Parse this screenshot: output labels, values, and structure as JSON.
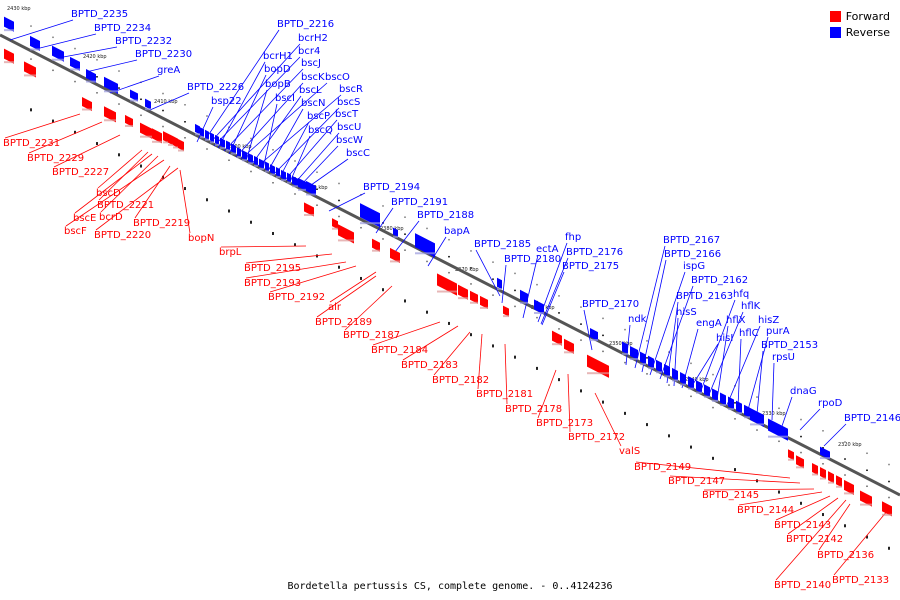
{
  "legend": {
    "forward_label": "Forward",
    "reverse_label": "Reverse",
    "forward_color": "#ff0000",
    "reverse_color": "#0000ff"
  },
  "caption": "Bordetella pertussis CS, complete genome. - 0..4124236",
  "axis": {
    "ticks": [
      "2430 kbp",
      "2420 kbp",
      "2410 kbp",
      "2400 kbp",
      "2390 kbp",
      "2380 kbp",
      "2370 kbp",
      "2360 kbp",
      "2350 kbp",
      "2340 kbp",
      "2330 kbp",
      "2320 kbp"
    ]
  },
  "reverse_genes": [
    "BPTD_2235",
    "BPTD_2234",
    "BPTD_2232",
    "BPTD_2230",
    "greA",
    "BPTD_2226",
    "bsp22",
    "BPTD_2216",
    "bcrH2",
    "bcr4",
    "bcrH1",
    "bscJ",
    "bopD",
    "bscK",
    "bscO",
    "bopB",
    "bscL",
    "bscR",
    "bscI",
    "bscN",
    "bscS",
    "bscP",
    "bscT",
    "bscQ",
    "bscU",
    "bscW",
    "bscC",
    "BPTD_2194",
    "BPTD_2191",
    "BPTD_2188",
    "bapA",
    "BPTD_2185",
    "ectA",
    "fhp",
    "BPTD_2180",
    "BPTD_2176",
    "BPTD_2175",
    "BPTD_2170",
    "ndk",
    "BPTD_2167",
    "BPTD_2166",
    "ispG",
    "BPTD_2162",
    "BPTD_2163",
    "hfq",
    "hisS",
    "hflK",
    "hisI",
    "engA",
    "hflX",
    "hisZ",
    "hflC",
    "purA",
    "BPTD_2153",
    "rpsU",
    "dnaG",
    "rpoD",
    "BPTD_2146"
  ],
  "forward_genes": [
    "BPTD_2231",
    "BPTD_2229",
    "BPTD_2227",
    "bscD",
    "BPTD_2221",
    "bscE",
    "bcrD",
    "bscF",
    "BPTD_2219",
    "BPTD_2220",
    "bopN",
    "brpL",
    "BPTD_2195",
    "BPTD_2193",
    "BPTD_2192",
    "alr",
    "BPTD_2189",
    "BPTD_2187",
    "BPTD_2184",
    "BPTD_2183",
    "BPTD_2182",
    "BPTD_2181",
    "BPTD_2178",
    "BPTD_2173",
    "BPTD_2172",
    "valS",
    "BPTD_2149",
    "BPTD_2147",
    "BPTD_2145",
    "BPTD_2144",
    "BPTD_2143",
    "BPTD_2142",
    "BPTD_2136",
    "BPTD_2140",
    "BPTD_2133"
  ]
}
